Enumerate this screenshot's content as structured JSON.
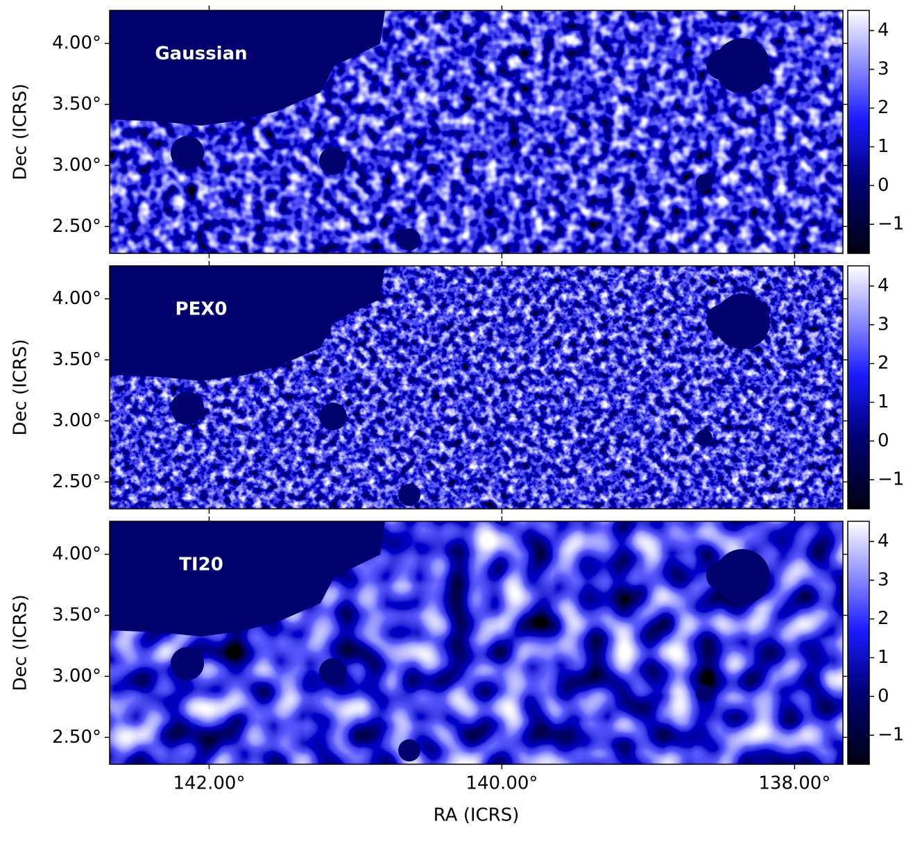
{
  "chart_data": [
    {
      "type": "image",
      "label": "Gaussian",
      "ylabel": "Dec (ICRS)",
      "xlim": [
        142.68,
        137.67
      ],
      "ylim": [
        2.28,
        4.27
      ],
      "yticks": [
        {
          "value": 2.5,
          "label": "2.50°"
        },
        {
          "value": 3.0,
          "label": "3.00°"
        },
        {
          "value": 3.5,
          "label": "3.50°"
        },
        {
          "value": 4.0,
          "label": "4.00°"
        }
      ],
      "colorbar": {
        "lim": [
          -1.75,
          4.52
        ],
        "ticks": [
          {
            "value": -1,
            "label": "−1"
          },
          0,
          1,
          2,
          3,
          4
        ]
      }
    },
    {
      "type": "image",
      "label": "PEX0",
      "ylabel": "Dec (ICRS)",
      "xlim": [
        142.68,
        137.67
      ],
      "ylim": [
        2.28,
        4.27
      ],
      "yticks": [
        {
          "value": 2.5,
          "label": "2.50°"
        },
        {
          "value": 3.0,
          "label": "3.00°"
        },
        {
          "value": 3.5,
          "label": "3.50°"
        },
        {
          "value": 4.0,
          "label": "4.00°"
        }
      ],
      "colorbar": {
        "lim": [
          -1.75,
          4.52
        ],
        "ticks": [
          {
            "value": -1,
            "label": "−1"
          },
          0,
          1,
          2,
          3,
          4
        ]
      }
    },
    {
      "type": "image",
      "label": "TI20",
      "ylabel": "Dec (ICRS)",
      "xlabel": "RA (ICRS)",
      "xlim": [
        142.68,
        137.67
      ],
      "ylim": [
        2.28,
        4.27
      ],
      "xticks": [
        {
          "value": 142,
          "label": "142.00°"
        },
        {
          "value": 140,
          "label": "140.00°"
        },
        {
          "value": 138,
          "label": "138.00°"
        }
      ],
      "yticks": [
        {
          "value": 2.5,
          "label": "2.50°"
        },
        {
          "value": 3.0,
          "label": "3.00°"
        },
        {
          "value": 3.5,
          "label": "3.50°"
        },
        {
          "value": 4.0,
          "label": "4.00°"
        }
      ],
      "colorbar": {
        "lim": [
          -1.75,
          4.52
        ],
        "ticks": [
          {
            "value": -1,
            "label": "−1"
          },
          0,
          1,
          2,
          3,
          4
        ]
      }
    }
  ]
}
